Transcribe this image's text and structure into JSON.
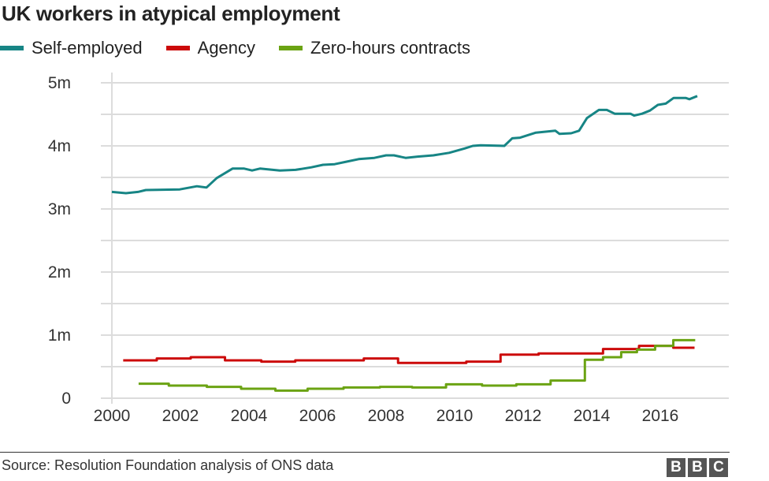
{
  "chart_data": {
    "type": "line",
    "title": "UK workers in atypical employment",
    "xlabel": "",
    "ylabel": "",
    "xlim": [
      2000,
      2018
    ],
    "ylim": [
      0,
      5
    ],
    "grid": true,
    "legend_position": "top-left",
    "x_ticks": [
      {
        "value": 2000,
        "label": "2000"
      },
      {
        "value": 2002,
        "label": "2002"
      },
      {
        "value": 2004,
        "label": "2004"
      },
      {
        "value": 2006,
        "label": "2006"
      },
      {
        "value": 2008,
        "label": "2008"
      },
      {
        "value": 2010,
        "label": "2010"
      },
      {
        "value": 2012,
        "label": "2012"
      },
      {
        "value": 2014,
        "label": "2014"
      },
      {
        "value": 2016,
        "label": "2016"
      }
    ],
    "y_ticks": [
      {
        "value": 0,
        "label": "0"
      },
      {
        "value": 1,
        "label": "1m"
      },
      {
        "value": 2,
        "label": "2m"
      },
      {
        "value": 3,
        "label": "3m"
      },
      {
        "value": 4,
        "label": "4m"
      },
      {
        "value": 5,
        "label": "5m"
      }
    ],
    "series": [
      {
        "name": "Self-employed",
        "color": "#178585",
        "step": false,
        "points": [
          [
            2000.0,
            3.27
          ],
          [
            2000.41,
            3.25
          ],
          [
            2000.76,
            3.27
          ],
          [
            2000.99,
            3.3
          ],
          [
            2001.98,
            3.31
          ],
          [
            2002.48,
            3.36
          ],
          [
            2002.76,
            3.34
          ],
          [
            2003.06,
            3.49
          ],
          [
            2003.52,
            3.64
          ],
          [
            2003.86,
            3.64
          ],
          [
            2004.09,
            3.61
          ],
          [
            2004.32,
            3.64
          ],
          [
            2004.9,
            3.61
          ],
          [
            2005.36,
            3.62
          ],
          [
            2005.82,
            3.66
          ],
          [
            2006.16,
            3.7
          ],
          [
            2006.5,
            3.71
          ],
          [
            2006.85,
            3.75
          ],
          [
            2007.2,
            3.79
          ],
          [
            2007.66,
            3.81
          ],
          [
            2008.0,
            3.85
          ],
          [
            2008.23,
            3.85
          ],
          [
            2008.57,
            3.81
          ],
          [
            2008.92,
            3.83
          ],
          [
            2009.38,
            3.85
          ],
          [
            2009.84,
            3.89
          ],
          [
            2010.3,
            3.96
          ],
          [
            2010.53,
            4.0
          ],
          [
            2010.76,
            4.01
          ],
          [
            2011.45,
            4.0
          ],
          [
            2011.68,
            4.12
          ],
          [
            2011.91,
            4.13
          ],
          [
            2012.37,
            4.21
          ],
          [
            2012.94,
            4.24
          ],
          [
            2013.06,
            4.19
          ],
          [
            2013.4,
            4.2
          ],
          [
            2013.63,
            4.24
          ],
          [
            2013.86,
            4.44
          ],
          [
            2014.21,
            4.57
          ],
          [
            2014.44,
            4.57
          ],
          [
            2014.67,
            4.51
          ],
          [
            2015.13,
            4.51
          ],
          [
            2015.24,
            4.48
          ],
          [
            2015.47,
            4.51
          ],
          [
            2015.7,
            4.56
          ],
          [
            2015.93,
            4.65
          ],
          [
            2016.16,
            4.67
          ],
          [
            2016.39,
            4.76
          ],
          [
            2016.74,
            4.76
          ],
          [
            2016.85,
            4.74
          ],
          [
            2017.08,
            4.79
          ]
        ]
      },
      {
        "name": "Agency",
        "color": "#cc0a0a",
        "step": true,
        "points": [
          [
            2000.33,
            0.6
          ],
          [
            2001.31,
            0.63
          ],
          [
            2002.3,
            0.65
          ],
          [
            2003.3,
            0.6
          ],
          [
            2004.36,
            0.58
          ],
          [
            2005.35,
            0.6
          ],
          [
            2007.35,
            0.63
          ],
          [
            2008.35,
            0.56
          ],
          [
            2010.34,
            0.58
          ],
          [
            2011.34,
            0.69
          ],
          [
            2012.45,
            0.71
          ],
          [
            2014.33,
            0.78
          ],
          [
            2015.38,
            0.83
          ],
          [
            2016.38,
            0.8
          ],
          [
            2017.0,
            0.8
          ]
        ]
      },
      {
        "name": "Zero-hours contracts",
        "color": "#6ba313",
        "step": true,
        "points": [
          [
            2000.78,
            0.23
          ],
          [
            2001.66,
            0.2
          ],
          [
            2002.77,
            0.18
          ],
          [
            2003.77,
            0.15
          ],
          [
            2004.77,
            0.12
          ],
          [
            2005.71,
            0.15
          ],
          [
            2006.76,
            0.17
          ],
          [
            2007.82,
            0.18
          ],
          [
            2008.76,
            0.17
          ],
          [
            2009.75,
            0.22
          ],
          [
            2010.8,
            0.2
          ],
          [
            2011.8,
            0.22
          ],
          [
            2012.8,
            0.28
          ],
          [
            2013.8,
            0.61
          ],
          [
            2014.33,
            0.65
          ],
          [
            2014.86,
            0.73
          ],
          [
            2015.32,
            0.77
          ],
          [
            2015.85,
            0.83
          ],
          [
            2016.38,
            0.92
          ],
          [
            2017.02,
            0.92
          ]
        ]
      }
    ]
  },
  "footer": {
    "source": "Source: Resolution Foundation analysis of ONS data",
    "logo_letters": [
      "B",
      "B",
      "C"
    ]
  }
}
